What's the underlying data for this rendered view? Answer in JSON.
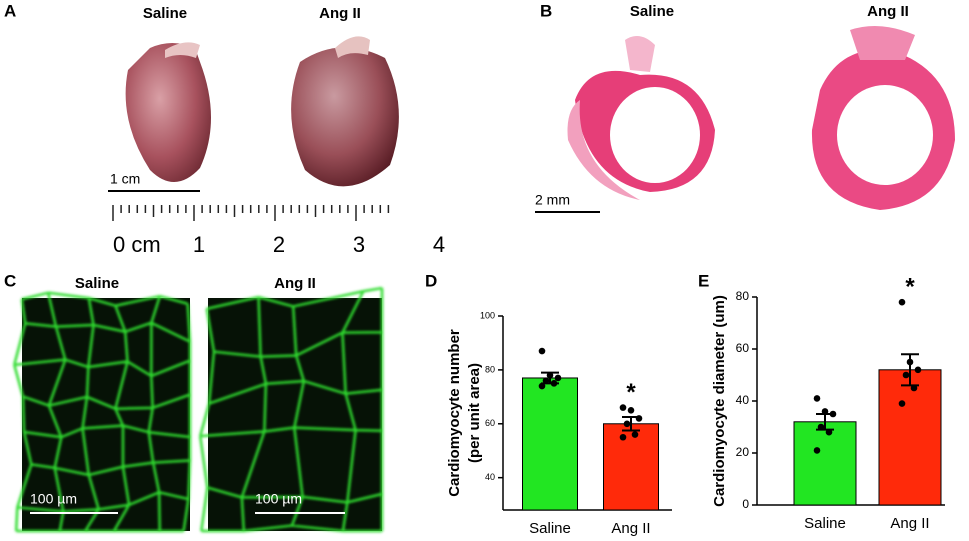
{
  "panels": {
    "A": {
      "letter": "A",
      "labels": [
        "Saline",
        "Ang II"
      ],
      "scale_bar": "1 cm",
      "ruler": [
        "0 cm",
        "1",
        "2",
        "3",
        "4"
      ]
    },
    "B": {
      "letter": "B",
      "labels": [
        "Saline",
        "Ang II"
      ],
      "scale_bar": "2 mm"
    },
    "C": {
      "letter": "C",
      "labels": [
        "Saline",
        "Ang II"
      ],
      "scale_bars": [
        "100 µm",
        "100 µm"
      ]
    }
  },
  "chart_data": [
    {
      "type": "bar",
      "panel": "D",
      "ylabel": [
        "Cardiomyocyte number",
        "(per unit area)"
      ],
      "categories": [
        "Saline",
        "Ang II"
      ],
      "values": [
        77,
        60
      ],
      "errors": [
        2,
        2.5
      ],
      "points": [
        [
          87,
          78,
          77,
          76,
          75,
          74
        ],
        [
          66,
          65,
          62,
          60,
          56,
          55
        ]
      ],
      "colors": [
        "#22e622",
        "#ff2a0a"
      ],
      "ylim": [
        28,
        100
      ],
      "yticks": [
        40,
        60,
        80,
        100
      ],
      "annotations": [
        {
          "text": "*",
          "category": "Ang II"
        }
      ]
    },
    {
      "type": "bar",
      "panel": "E",
      "ylabel": [
        "Cardiomyocyte diameter (um)"
      ],
      "categories": [
        "Saline",
        "Ang II"
      ],
      "values": [
        32,
        52
      ],
      "errors": [
        3,
        6
      ],
      "points": [
        [
          41,
          36,
          35,
          30,
          28,
          21
        ],
        [
          78,
          55,
          52,
          50,
          45,
          39
        ]
      ],
      "colors": [
        "#22e622",
        "#ff2a0a"
      ],
      "ylim": [
        0,
        80
      ],
      "yticks": [
        0,
        20,
        40,
        60,
        80
      ],
      "annotations": [
        {
          "text": "*",
          "category": "Ang II"
        }
      ]
    }
  ]
}
